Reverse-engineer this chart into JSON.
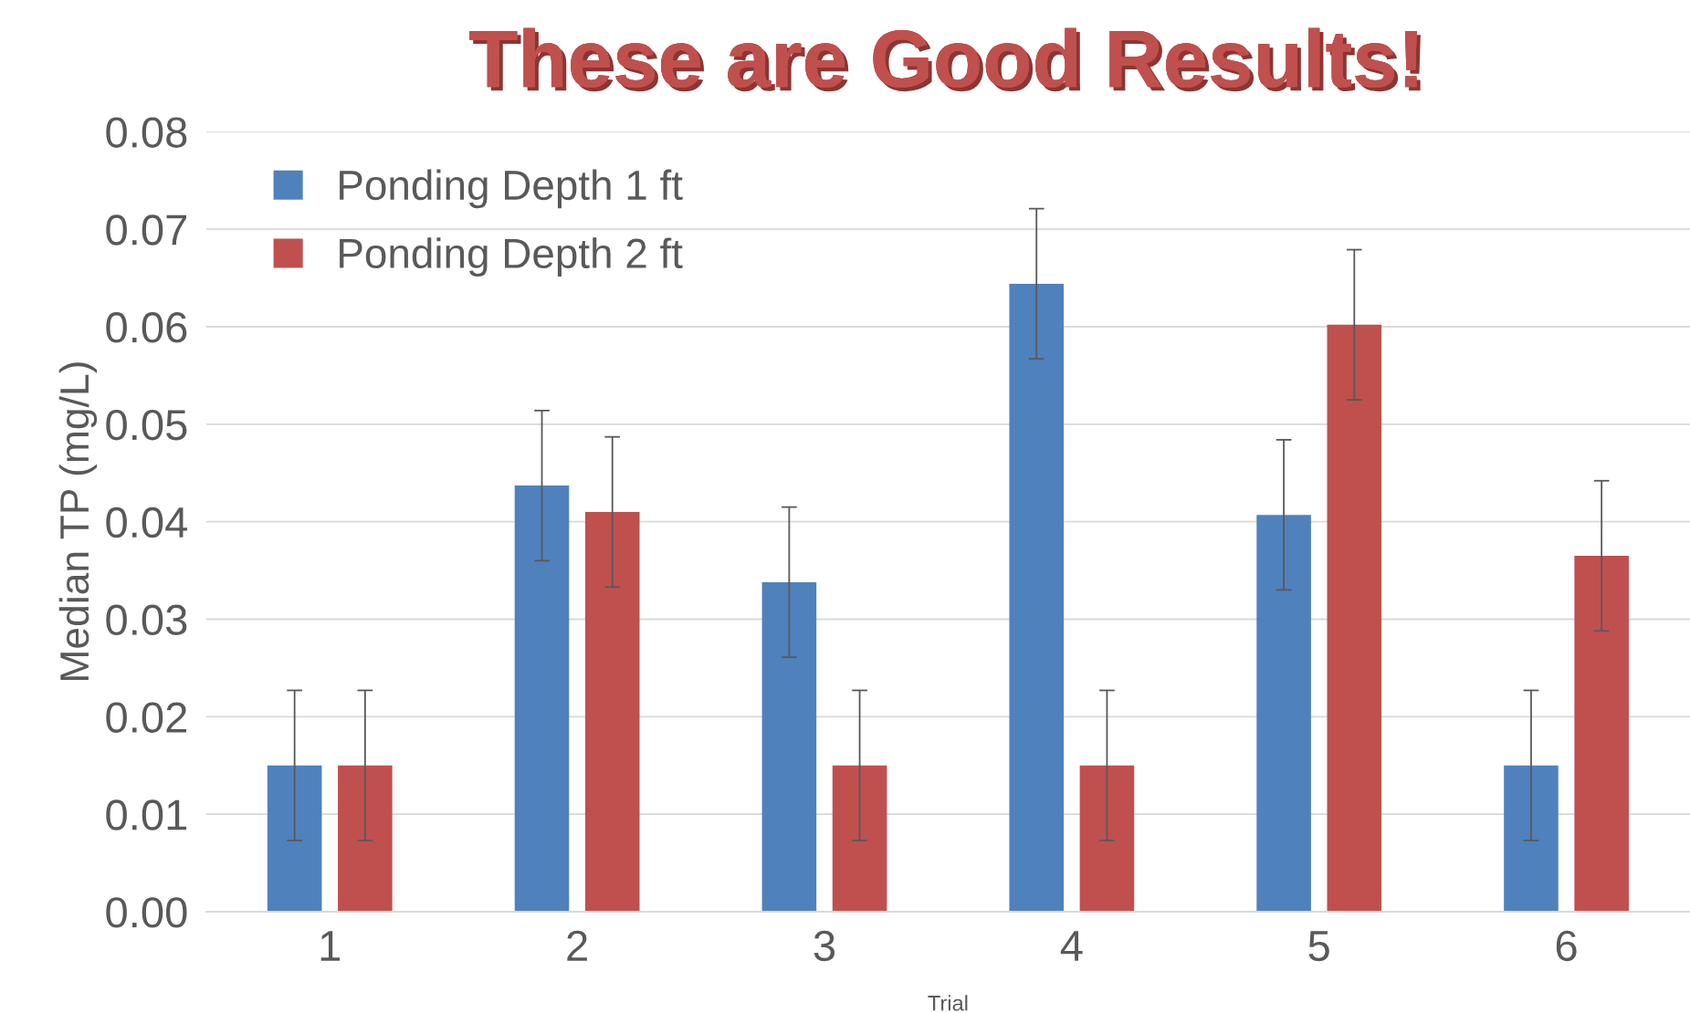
{
  "chart_data": {
    "type": "bar",
    "xlabel": "Trial",
    "ylabel": "Median TP (mg/L)",
    "categories": [
      "1",
      "2",
      "3",
      "4",
      "5",
      "6"
    ],
    "series": [
      {
        "name": "Ponding Depth 1 ft",
        "color": "#4f81bd",
        "values": [
          0.015,
          0.0437,
          0.0338,
          0.0644,
          0.0407,
          0.015
        ],
        "errors": [
          0.0077,
          0.0077,
          0.0077,
          0.0077,
          0.0077,
          0.0077
        ]
      },
      {
        "name": "Ponding Depth 2 ft",
        "color": "#c0504d",
        "values": [
          0.015,
          0.041,
          0.015,
          0.015,
          0.0602,
          0.0365
        ],
        "errors": [
          0.0077,
          0.0077,
          0.0077,
          0.0077,
          0.0077,
          0.0077
        ]
      }
    ],
    "ylim": [
      0,
      0.08
    ],
    "yticks": [
      {
        "value": 0,
        "label": "0.00"
      },
      {
        "value": 0.01,
        "label": "0.01"
      },
      {
        "value": 0.02,
        "label": "0.02"
      },
      {
        "value": 0.03,
        "label": "0.03"
      },
      {
        "value": 0.04,
        "label": "0.04"
      },
      {
        "value": 0.05,
        "label": "0.05"
      },
      {
        "value": 0.06,
        "label": "0.06"
      },
      {
        "value": 0.07,
        "label": "0.07"
      },
      {
        "value": 0.08,
        "label": "0.08"
      }
    ],
    "grid": "y",
    "legend": "top left",
    "annotations": [
      "These are Good Results!"
    ]
  }
}
